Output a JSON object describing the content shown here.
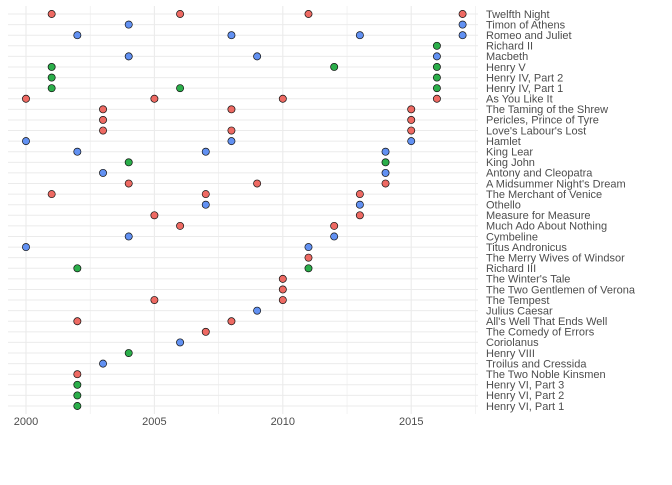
{
  "chart_data": {
    "type": "scatter",
    "title": "",
    "xlabel": "",
    "ylabel": "",
    "xlim": [
      1999.3,
      2017.6
    ],
    "xticks": [
      2000,
      2005,
      2010,
      2015
    ],
    "grid": true,
    "legend": "none",
    "colors": {
      "red": "#EE6A63",
      "blue": "#6291F2",
      "green": "#2BAE4A",
      "stroke": "#111111",
      "grid": "#EBEBEB",
      "text": "#4D4D4D"
    },
    "plays": [
      {
        "name": "Twelfth Night",
        "points": [
          {
            "x": 2001,
            "c": "red"
          },
          {
            "x": 2006,
            "c": "red"
          },
          {
            "x": 2011,
            "c": "red"
          },
          {
            "x": 2017,
            "c": "red"
          }
        ]
      },
      {
        "name": "Timon of Athens",
        "points": [
          {
            "x": 2004,
            "c": "blue"
          },
          {
            "x": 2017,
            "c": "blue"
          }
        ]
      },
      {
        "name": "Romeo and Juliet",
        "points": [
          {
            "x": 2002,
            "c": "blue"
          },
          {
            "x": 2008,
            "c": "blue"
          },
          {
            "x": 2013,
            "c": "blue"
          },
          {
            "x": 2017,
            "c": "blue"
          }
        ]
      },
      {
        "name": "Richard II",
        "points": [
          {
            "x": 2016,
            "c": "green"
          }
        ]
      },
      {
        "name": "Macbeth",
        "points": [
          {
            "x": 2004,
            "c": "blue"
          },
          {
            "x": 2009,
            "c": "blue"
          },
          {
            "x": 2016,
            "c": "blue"
          }
        ]
      },
      {
        "name": "Henry V",
        "points": [
          {
            "x": 2001,
            "c": "green"
          },
          {
            "x": 2012,
            "c": "green"
          },
          {
            "x": 2016,
            "c": "green"
          }
        ]
      },
      {
        "name": "Henry IV, Part 2",
        "points": [
          {
            "x": 2001,
            "c": "green"
          },
          {
            "x": 2016,
            "c": "green"
          }
        ]
      },
      {
        "name": "Henry IV, Part 1",
        "points": [
          {
            "x": 2001,
            "c": "green"
          },
          {
            "x": 2006,
            "c": "green"
          },
          {
            "x": 2016,
            "c": "green"
          }
        ]
      },
      {
        "name": "As You Like It",
        "points": [
          {
            "x": 2000,
            "c": "red"
          },
          {
            "x": 2005,
            "c": "red"
          },
          {
            "x": 2010,
            "c": "red"
          },
          {
            "x": 2016,
            "c": "red"
          }
        ]
      },
      {
        "name": "The Taming of the Shrew",
        "points": [
          {
            "x": 2003,
            "c": "red"
          },
          {
            "x": 2008,
            "c": "red"
          },
          {
            "x": 2015,
            "c": "red"
          }
        ]
      },
      {
        "name": "Pericles, Prince of Tyre",
        "points": [
          {
            "x": 2003,
            "c": "red"
          },
          {
            "x": 2015,
            "c": "red"
          }
        ]
      },
      {
        "name": "Love's Labour's Lost",
        "points": [
          {
            "x": 2003,
            "c": "red"
          },
          {
            "x": 2008,
            "c": "red"
          },
          {
            "x": 2015,
            "c": "red"
          }
        ]
      },
      {
        "name": "Hamlet",
        "points": [
          {
            "x": 2000,
            "c": "blue"
          },
          {
            "x": 2008,
            "c": "blue"
          },
          {
            "x": 2015,
            "c": "blue"
          }
        ]
      },
      {
        "name": "King Lear",
        "points": [
          {
            "x": 2002,
            "c": "blue"
          },
          {
            "x": 2007,
            "c": "blue"
          },
          {
            "x": 2014,
            "c": "blue"
          }
        ]
      },
      {
        "name": "King John",
        "points": [
          {
            "x": 2004,
            "c": "green"
          },
          {
            "x": 2014,
            "c": "green"
          }
        ]
      },
      {
        "name": "Antony and Cleopatra",
        "points": [
          {
            "x": 2003,
            "c": "blue"
          },
          {
            "x": 2014,
            "c": "blue"
          }
        ]
      },
      {
        "name": "A Midsummer Night's Dream",
        "points": [
          {
            "x": 2004,
            "c": "red"
          },
          {
            "x": 2009,
            "c": "red"
          },
          {
            "x": 2014,
            "c": "red"
          }
        ]
      },
      {
        "name": "The Merchant of Venice",
        "points": [
          {
            "x": 2001,
            "c": "red"
          },
          {
            "x": 2007,
            "c": "red"
          },
          {
            "x": 2013,
            "c": "red"
          }
        ]
      },
      {
        "name": "Othello",
        "points": [
          {
            "x": 2007,
            "c": "blue"
          },
          {
            "x": 2013,
            "c": "blue"
          }
        ]
      },
      {
        "name": "Measure for Measure",
        "points": [
          {
            "x": 2005,
            "c": "red"
          },
          {
            "x": 2013,
            "c": "red"
          }
        ]
      },
      {
        "name": "Much Ado About Nothing",
        "points": [
          {
            "x": 2006,
            "c": "red"
          },
          {
            "x": 2012,
            "c": "red"
          }
        ]
      },
      {
        "name": "Cymbeline",
        "points": [
          {
            "x": 2004,
            "c": "blue"
          },
          {
            "x": 2012,
            "c": "blue"
          }
        ]
      },
      {
        "name": "Titus Andronicus",
        "points": [
          {
            "x": 2000,
            "c": "blue"
          },
          {
            "x": 2011,
            "c": "blue"
          }
        ]
      },
      {
        "name": "The Merry Wives of Windsor",
        "points": [
          {
            "x": 2011,
            "c": "red"
          }
        ]
      },
      {
        "name": "Richard III",
        "points": [
          {
            "x": 2002,
            "c": "green"
          },
          {
            "x": 2011,
            "c": "green"
          }
        ]
      },
      {
        "name": "The Winter's Tale",
        "points": [
          {
            "x": 2010,
            "c": "red"
          }
        ]
      },
      {
        "name": "The Two Gentlemen of Verona",
        "points": [
          {
            "x": 2010,
            "c": "red"
          }
        ]
      },
      {
        "name": "The Tempest",
        "points": [
          {
            "x": 2005,
            "c": "red"
          },
          {
            "x": 2010,
            "c": "red"
          }
        ]
      },
      {
        "name": "Julius Caesar",
        "points": [
          {
            "x": 2009,
            "c": "blue"
          }
        ]
      },
      {
        "name": "All's Well That Ends Well",
        "points": [
          {
            "x": 2002,
            "c": "red"
          },
          {
            "x": 2008,
            "c": "red"
          }
        ]
      },
      {
        "name": "The Comedy of Errors",
        "points": [
          {
            "x": 2007,
            "c": "red"
          }
        ]
      },
      {
        "name": "Coriolanus",
        "points": [
          {
            "x": 2006,
            "c": "blue"
          }
        ]
      },
      {
        "name": "Henry VIII",
        "points": [
          {
            "x": 2004,
            "c": "green"
          }
        ]
      },
      {
        "name": "Troilus and Cressida",
        "points": [
          {
            "x": 2003,
            "c": "blue"
          }
        ]
      },
      {
        "name": "The Two Noble Kinsmen",
        "points": [
          {
            "x": 2002,
            "c": "red"
          }
        ]
      },
      {
        "name": "Henry VI, Part 3",
        "points": [
          {
            "x": 2002,
            "c": "green"
          }
        ]
      },
      {
        "name": "Henry VI, Part 2",
        "points": [
          {
            "x": 2002,
            "c": "green"
          }
        ]
      },
      {
        "name": "Henry VI, Part 1",
        "points": [
          {
            "x": 2002,
            "c": "green"
          }
        ]
      }
    ]
  }
}
